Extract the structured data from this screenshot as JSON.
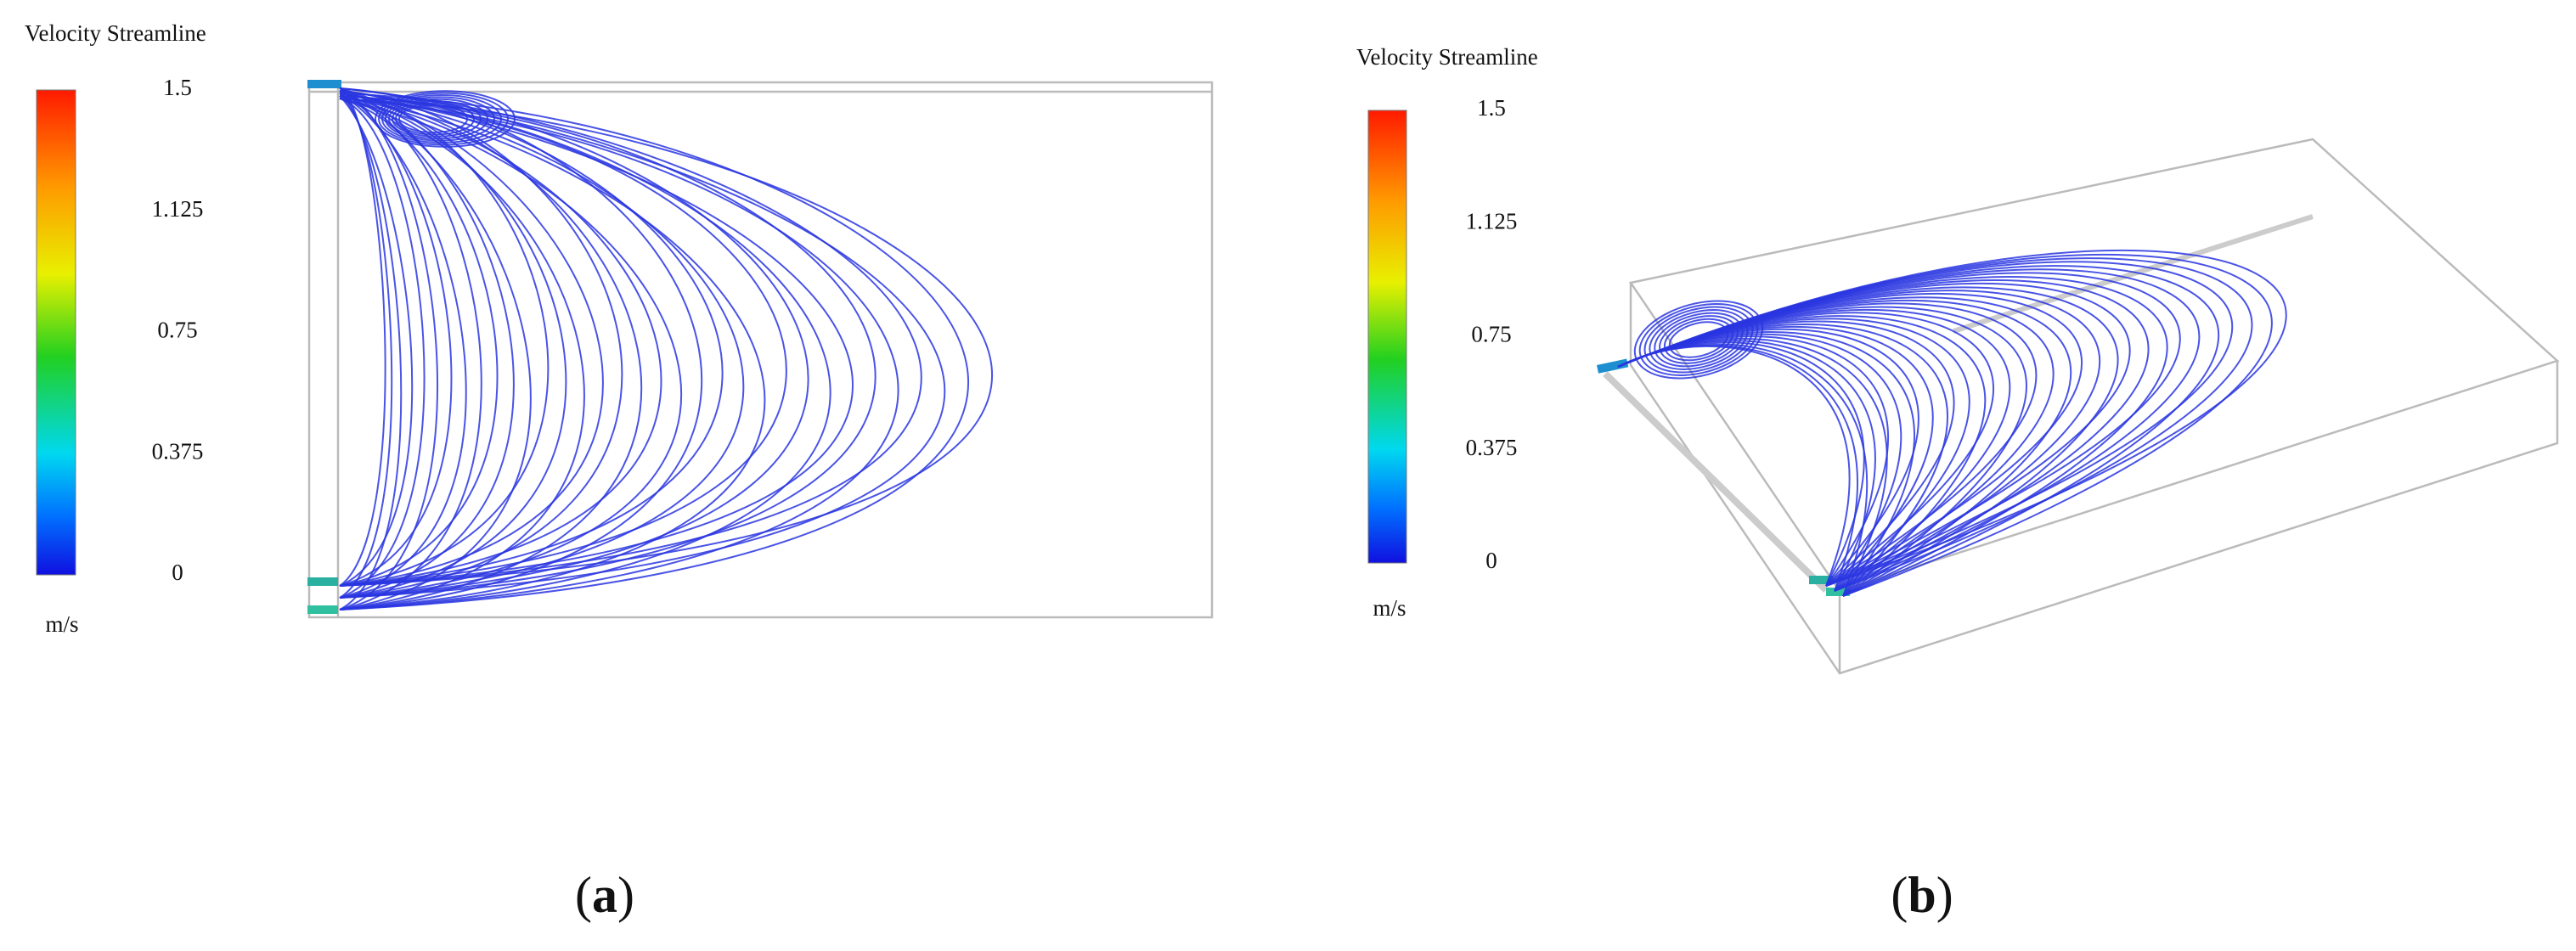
{
  "panels": [
    {
      "title": "Velocity Streamline",
      "colorbar": {
        "ticks": [
          1.5,
          1.125,
          0.75,
          0.375,
          0
        ],
        "unit": "m/s"
      },
      "label": {
        "open": "(",
        "letter": "a",
        "close": ")"
      }
    },
    {
      "title": "Velocity Streamline",
      "colorbar": {
        "ticks": [
          1.5,
          1.125,
          0.75,
          0.375,
          0
        ],
        "unit": "m/s"
      },
      "label": {
        "open": "(",
        "letter": "b",
        "close": ")"
      }
    }
  ]
}
